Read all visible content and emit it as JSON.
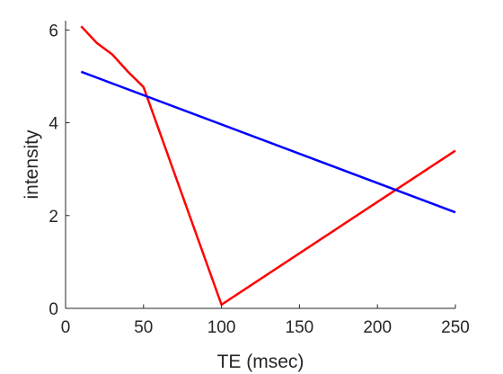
{
  "chart_data": {
    "type": "line",
    "title": "",
    "xlabel": "TE (msec)",
    "ylabel": "intensity",
    "xlim": [
      0,
      250
    ],
    "ylim": [
      0,
      6.2
    ],
    "xticks": [
      0,
      50,
      100,
      150,
      200,
      250
    ],
    "yticks": [
      0,
      2,
      4,
      6
    ],
    "xtick_labels": [
      "0",
      "50",
      "100",
      "150",
      "200",
      "250"
    ],
    "ytick_labels": [
      "0",
      "2",
      "4",
      "6"
    ],
    "grid": false,
    "legend": "none",
    "series": [
      {
        "color": "#ff0000",
        "x": [
          10,
          20,
          30,
          40,
          50,
          100,
          250
        ],
        "y": [
          6.08,
          5.72,
          5.47,
          5.1,
          4.77,
          0.08,
          3.4
        ]
      },
      {
        "color": "#0000ff",
        "x": [
          10,
          250
        ],
        "y": [
          5.1,
          2.07
        ]
      }
    ]
  }
}
